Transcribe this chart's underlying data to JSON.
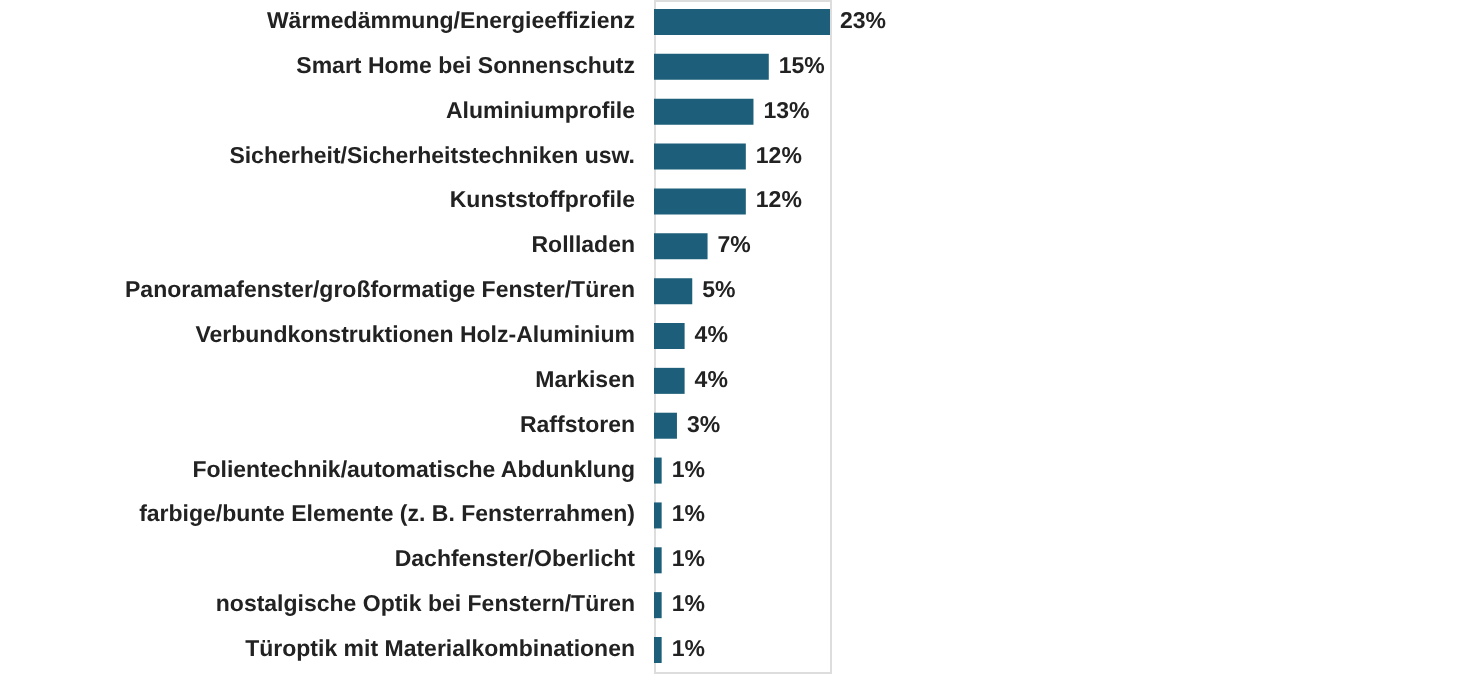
{
  "chart_data": {
    "type": "bar",
    "orientation": "horizontal",
    "categories": [
      "Wärmedämmung/Energieeffizienz",
      "Smart Home bei Sonnenschutz",
      "Aluminiumprofile",
      "Sicherheit/Sicherheitstechniken usw.",
      "Kunststoffprofile",
      "Rollladen",
      "Panoramafenster/großformatige Fenster/Türen",
      "Verbundkonstruktionen Holz-Aluminium",
      "Markisen",
      "Raffstoren",
      "Folientechnik/automatische Abdunklung",
      "farbige/bunte Elemente (z. B. Fensterrahmen)",
      "Dachfenster/Oberlicht",
      "nostalgische Optik bei Fenstern/Türen",
      "Türoptik mit Materialkombinationen"
    ],
    "values": [
      23,
      15,
      13,
      12,
      12,
      7,
      5,
      4,
      4,
      3,
      1,
      1,
      1,
      1,
      1
    ],
    "value_labels": [
      "23%",
      "15%",
      "13%",
      "12%",
      "12%",
      "7%",
      "5%",
      "4%",
      "4%",
      "3%",
      "1%",
      "1%",
      "1%",
      "1%",
      "1%"
    ],
    "color": "#1d5f7a",
    "grid": false,
    "tick_labels": "y"
  }
}
